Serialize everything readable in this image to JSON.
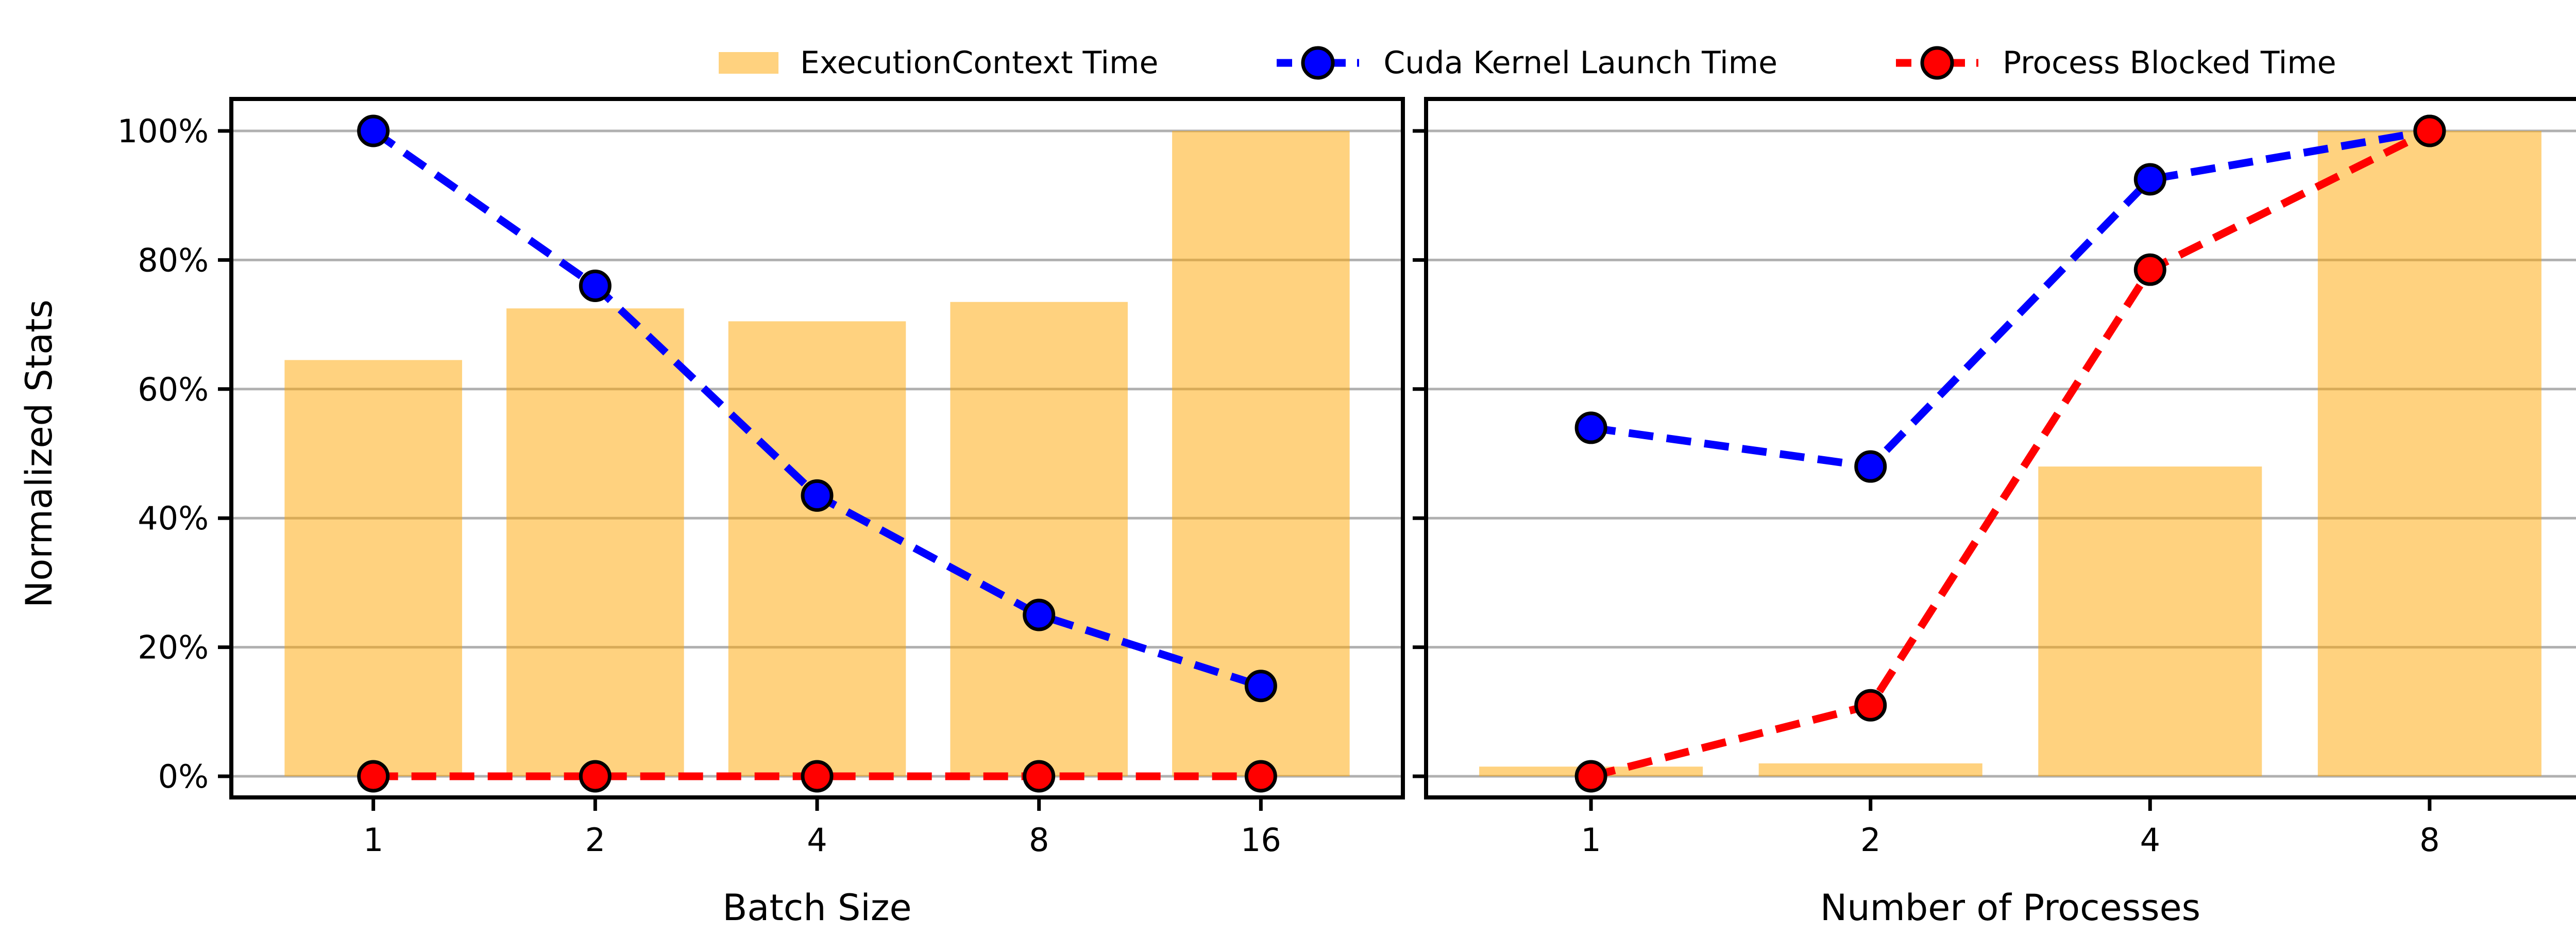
{
  "figure": {
    "background": "#ffffff"
  },
  "legend": {
    "items": [
      {
        "type": "patch",
        "label": "ExecutionContext Time",
        "color": "#FFA500",
        "alpha": 0.5
      },
      {
        "type": "dashed-line-marker",
        "label": "Cuda Kernel Launch Time",
        "color": "#0000FF"
      },
      {
        "type": "dashed-line-marker",
        "label": "Process Blocked Time",
        "color": "#FF0000"
      }
    ]
  },
  "axes": {
    "ylabel": "Normalized Stats",
    "ytick_labels": [
      "0%",
      "20%",
      "40%",
      "60%",
      "80%",
      "100%"
    ],
    "ytick_values": [
      0,
      20,
      40,
      60,
      80,
      100
    ],
    "ylim": [
      0,
      100
    ],
    "grid": true
  },
  "style": {
    "bar_color": "#FFA500",
    "bar_alpha": 0.5,
    "bar_fill_on_white": "#FFD280",
    "grid_color": "#B0B0B0",
    "spine_color": "#000000",
    "tick_color": "#000000",
    "text_color": "#000000",
    "blue": "#0000FF",
    "red": "#FF0000",
    "marker_edge": "#000000"
  },
  "chart_data": [
    {
      "type": "bar",
      "title": "",
      "xlabel": "Batch Size",
      "ylabel": "Normalized Stats",
      "categories": [
        "1",
        "2",
        "4",
        "8",
        "16"
      ],
      "ylim": [
        0,
        100
      ],
      "grid": true,
      "legend_position": "top-center",
      "series": [
        {
          "name": "ExecutionContext Time",
          "type": "bar",
          "color": "#FFA500",
          "alpha": 0.5,
          "values": [
            64.5,
            72.5,
            70.5,
            73.5,
            100
          ]
        },
        {
          "name": "Cuda Kernel Launch Time",
          "type": "line",
          "linestyle": "dashed",
          "marker": "circle",
          "color": "#0000FF",
          "values": [
            100,
            76,
            43.5,
            25,
            14
          ]
        },
        {
          "name": "Process Blocked Time",
          "type": "line",
          "linestyle": "dashed",
          "marker": "circle",
          "color": "#FF0000",
          "values": [
            0,
            0,
            0,
            0,
            0
          ]
        }
      ]
    },
    {
      "type": "bar",
      "title": "",
      "xlabel": "Number of Processes",
      "ylabel": "Normalized Stats",
      "categories": [
        "1",
        "2",
        "4",
        "8"
      ],
      "ylim": [
        0,
        100
      ],
      "grid": true,
      "legend_position": "top-center",
      "series": [
        {
          "name": "ExecutionContext Time",
          "type": "bar",
          "color": "#FFA500",
          "alpha": 0.5,
          "values": [
            1.5,
            2,
            48,
            100
          ]
        },
        {
          "name": "Cuda Kernel Launch Time",
          "type": "line",
          "linestyle": "dashed",
          "marker": "circle",
          "color": "#0000FF",
          "values": [
            54,
            48,
            92.5,
            100
          ]
        },
        {
          "name": "Process Blocked Time",
          "type": "line",
          "linestyle": "dashed",
          "marker": "circle",
          "color": "#FF0000",
          "values": [
            0,
            11,
            78.5,
            100
          ]
        }
      ]
    }
  ]
}
